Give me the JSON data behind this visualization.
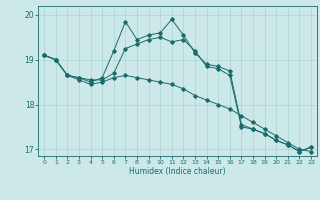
{
  "title": "",
  "xlabel": "Humidex (Indice chaleur)",
  "background_color": "#cce8e8",
  "line_color": "#1a6b6b",
  "grid_color": "#aad4d4",
  "xlim": [
    -0.5,
    23.5
  ],
  "ylim": [
    16.85,
    20.2
  ],
  "yticks": [
    17,
    18,
    19,
    20
  ],
  "xticks": [
    0,
    1,
    2,
    3,
    4,
    5,
    6,
    7,
    8,
    9,
    10,
    11,
    12,
    13,
    14,
    15,
    16,
    17,
    18,
    19,
    20,
    21,
    22,
    23
  ],
  "x": [
    0,
    1,
    2,
    3,
    4,
    5,
    6,
    7,
    8,
    9,
    10,
    11,
    12,
    13,
    14,
    15,
    16,
    17,
    18,
    19,
    20,
    21,
    22,
    23
  ],
  "top_y": [
    19.1,
    19.0,
    18.65,
    18.6,
    18.5,
    18.6,
    19.2,
    19.85,
    19.45,
    19.55,
    19.6,
    19.9,
    19.55,
    19.15,
    18.9,
    18.85,
    18.75,
    17.55,
    17.45,
    17.35,
    17.2,
    17.1,
    16.95,
    17.05
  ],
  "mid_y": [
    19.1,
    19.0,
    18.65,
    18.6,
    18.55,
    18.55,
    18.7,
    19.25,
    19.35,
    19.45,
    19.5,
    19.4,
    19.45,
    19.2,
    18.85,
    18.8,
    18.65,
    17.5,
    17.45,
    17.35,
    17.2,
    17.1,
    16.95,
    17.05
  ],
  "bot_y": [
    19.1,
    19.0,
    18.65,
    18.55,
    18.45,
    18.5,
    18.6,
    18.65,
    18.6,
    18.55,
    18.5,
    18.45,
    18.35,
    18.2,
    18.1,
    18.0,
    17.9,
    17.75,
    17.6,
    17.45,
    17.3,
    17.15,
    17.0,
    16.95
  ]
}
